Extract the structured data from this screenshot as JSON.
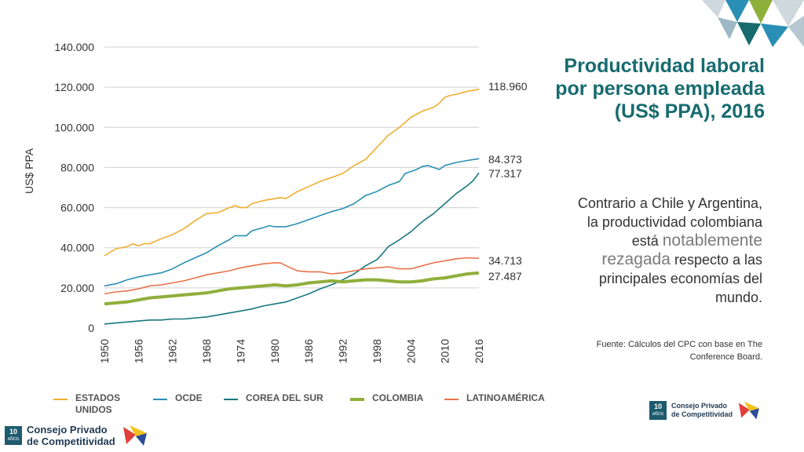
{
  "title": "Productividad laboral por persona empleada (US$ PPA), 2016",
  "body": {
    "part1": "Contrario a Chile y Argentina, la productividad colombiana está",
    "emphasis": "notablemente rezagada",
    "part2": "respecto a las principales economías del mundo."
  },
  "source": {
    "label": "Fuente:",
    "text": "Cálculos del CPC con base en The Conference Board."
  },
  "logo": {
    "badge_number": "10",
    "badge_sub": "AÑOS",
    "line1": "Consejo Privado",
    "line2": "de Competitividad"
  },
  "colors": {
    "estados_unidos": "#efad2e",
    "ocde": "#2a8fb5",
    "corea": "#18787f",
    "colombia": "#8faf3b",
    "latam": "#e8724b",
    "title": "#176b6f"
  },
  "chart_data": {
    "type": "line",
    "title": "",
    "xlabel": "",
    "ylabel": "US$ PPA",
    "ylim": [
      0,
      140000
    ],
    "yticks": [
      0,
      20000,
      40000,
      60000,
      80000,
      100000,
      120000,
      140000
    ],
    "ytick_labels": [
      "0",
      "20.000",
      "40.000",
      "60.000",
      "80.000",
      "100.000",
      "120.000",
      "140.000"
    ],
    "xlim": [
      1950,
      2016
    ],
    "xtick_labels": [
      "1950",
      "1956",
      "1962",
      "1968",
      "1974",
      "1980",
      "1986",
      "1992",
      "1998",
      "2004",
      "2010",
      "2016"
    ],
    "grid": true,
    "legend_position": "bottom",
    "series": [
      {
        "key": "estados_unidos",
        "name": "ESTADOS UNIDOS",
        "end_label": "118.960",
        "points": [
          [
            1950,
            36000
          ],
          [
            1952,
            39500
          ],
          [
            1954,
            40500
          ],
          [
            1955,
            42000
          ],
          [
            1956,
            41000
          ],
          [
            1957,
            42000
          ],
          [
            1958,
            42000
          ],
          [
            1960,
            44500
          ],
          [
            1962,
            46500
          ],
          [
            1964,
            49500
          ],
          [
            1966,
            53500
          ],
          [
            1968,
            57000
          ],
          [
            1970,
            57500
          ],
          [
            1972,
            60000
          ],
          [
            1973,
            61000
          ],
          [
            1974,
            60000
          ],
          [
            1975,
            60000
          ],
          [
            1976,
            62000
          ],
          [
            1978,
            63500
          ],
          [
            1980,
            64500
          ],
          [
            1981,
            65000
          ],
          [
            1982,
            64500
          ],
          [
            1984,
            68000
          ],
          [
            1986,
            70500
          ],
          [
            1988,
            73000
          ],
          [
            1990,
            75000
          ],
          [
            1992,
            77000
          ],
          [
            1994,
            81000
          ],
          [
            1996,
            84000
          ],
          [
            1998,
            90000
          ],
          [
            2000,
            96000
          ],
          [
            2002,
            100000
          ],
          [
            2004,
            105000
          ],
          [
            2006,
            108000
          ],
          [
            2008,
            110000
          ],
          [
            2009,
            112000
          ],
          [
            2010,
            115000
          ],
          [
            2011,
            116000
          ],
          [
            2012,
            116500
          ],
          [
            2014,
            118000
          ],
          [
            2016,
            118960
          ]
        ]
      },
      {
        "key": "ocde",
        "name": "OCDE",
        "end_label": "84.373",
        "points": [
          [
            1950,
            21000
          ],
          [
            1952,
            22000
          ],
          [
            1954,
            24000
          ],
          [
            1956,
            25500
          ],
          [
            1958,
            26500
          ],
          [
            1960,
            27500
          ],
          [
            1962,
            29500
          ],
          [
            1964,
            32500
          ],
          [
            1966,
            35000
          ],
          [
            1968,
            37500
          ],
          [
            1970,
            41000
          ],
          [
            1972,
            44000
          ],
          [
            1973,
            46000
          ],
          [
            1974,
            46000
          ],
          [
            1975,
            46000
          ],
          [
            1976,
            48500
          ],
          [
            1978,
            50000
          ],
          [
            1979,
            51000
          ],
          [
            1980,
            50500
          ],
          [
            1982,
            50500
          ],
          [
            1984,
            52000
          ],
          [
            1986,
            54000
          ],
          [
            1988,
            56000
          ],
          [
            1990,
            58000
          ],
          [
            1992,
            59500
          ],
          [
            1994,
            62000
          ],
          [
            1996,
            66000
          ],
          [
            1998,
            68000
          ],
          [
            2000,
            71000
          ],
          [
            2002,
            73000
          ],
          [
            2003,
            77000
          ],
          [
            2005,
            79000
          ],
          [
            2006,
            80500
          ],
          [
            2007,
            81000
          ],
          [
            2008,
            80000
          ],
          [
            2009,
            79000
          ],
          [
            2010,
            81000
          ],
          [
            2012,
            82500
          ],
          [
            2014,
            83500
          ],
          [
            2016,
            84373
          ]
        ]
      },
      {
        "key": "corea",
        "name": "COREA DEL SUR",
        "end_label": "77.317",
        "points": [
          [
            1950,
            2000
          ],
          [
            1952,
            2500
          ],
          [
            1954,
            3000
          ],
          [
            1956,
            3500
          ],
          [
            1958,
            4000
          ],
          [
            1960,
            4000
          ],
          [
            1962,
            4500
          ],
          [
            1964,
            4500
          ],
          [
            1966,
            5000
          ],
          [
            1968,
            5500
          ],
          [
            1970,
            6500
          ],
          [
            1972,
            7500
          ],
          [
            1974,
            8500
          ],
          [
            1976,
            9500
          ],
          [
            1978,
            11000
          ],
          [
            1980,
            12000
          ],
          [
            1982,
            13000
          ],
          [
            1984,
            15000
          ],
          [
            1986,
            17000
          ],
          [
            1988,
            19500
          ],
          [
            1990,
            21500
          ],
          [
            1992,
            24000
          ],
          [
            1994,
            27000
          ],
          [
            1996,
            31000
          ],
          [
            1998,
            34000
          ],
          [
            1999,
            37000
          ],
          [
            2000,
            40500
          ],
          [
            2002,
            44000
          ],
          [
            2004,
            48000
          ],
          [
            2006,
            53000
          ],
          [
            2008,
            57000
          ],
          [
            2010,
            62000
          ],
          [
            2012,
            67000
          ],
          [
            2014,
            71000
          ],
          [
            2015,
            73500
          ],
          [
            2016,
            77317
          ]
        ]
      },
      {
        "key": "colombia",
        "name": "COLOMBIA",
        "end_label": "27.487",
        "thick": true,
        "points": [
          [
            1950,
            12000
          ],
          [
            1952,
            12500
          ],
          [
            1954,
            13000
          ],
          [
            1956,
            14000
          ],
          [
            1958,
            15000
          ],
          [
            1960,
            15500
          ],
          [
            1962,
            16000
          ],
          [
            1964,
            16500
          ],
          [
            1966,
            17000
          ],
          [
            1968,
            17500
          ],
          [
            1970,
            18500
          ],
          [
            1972,
            19500
          ],
          [
            1974,
            20000
          ],
          [
            1976,
            20500
          ],
          [
            1978,
            21000
          ],
          [
            1980,
            21500
          ],
          [
            1982,
            21000
          ],
          [
            1984,
            21500
          ],
          [
            1986,
            22500
          ],
          [
            1988,
            23000
          ],
          [
            1990,
            23500
          ],
          [
            1992,
            23000
          ],
          [
            1994,
            23500
          ],
          [
            1996,
            24000
          ],
          [
            1998,
            24000
          ],
          [
            2000,
            23500
          ],
          [
            2002,
            23000
          ],
          [
            2004,
            23000
          ],
          [
            2006,
            23500
          ],
          [
            2008,
            24500
          ],
          [
            2010,
            25000
          ],
          [
            2012,
            26000
          ],
          [
            2014,
            27000
          ],
          [
            2016,
            27487
          ]
        ]
      },
      {
        "key": "latam",
        "name": "LATINOAMÉRICA",
        "end_label": "34.713",
        "points": [
          [
            1950,
            17000
          ],
          [
            1952,
            18000
          ],
          [
            1954,
            18500
          ],
          [
            1956,
            19500
          ],
          [
            1958,
            21000
          ],
          [
            1960,
            21500
          ],
          [
            1962,
            22500
          ],
          [
            1964,
            23500
          ],
          [
            1966,
            25000
          ],
          [
            1968,
            26500
          ],
          [
            1970,
            27500
          ],
          [
            1972,
            28500
          ],
          [
            1974,
            30000
          ],
          [
            1976,
            31000
          ],
          [
            1978,
            32000
          ],
          [
            1980,
            32500
          ],
          [
            1981,
            32500
          ],
          [
            1982,
            31000
          ],
          [
            1984,
            28500
          ],
          [
            1986,
            28000
          ],
          [
            1988,
            28000
          ],
          [
            1990,
            27000
          ],
          [
            1992,
            27500
          ],
          [
            1994,
            28500
          ],
          [
            1996,
            29500
          ],
          [
            1998,
            30000
          ],
          [
            2000,
            30500
          ],
          [
            2002,
            29500
          ],
          [
            2004,
            29500
          ],
          [
            2006,
            31000
          ],
          [
            2008,
            32500
          ],
          [
            2010,
            33500
          ],
          [
            2012,
            34500
          ],
          [
            2014,
            35000
          ],
          [
            2016,
            34713
          ]
        ]
      }
    ]
  }
}
